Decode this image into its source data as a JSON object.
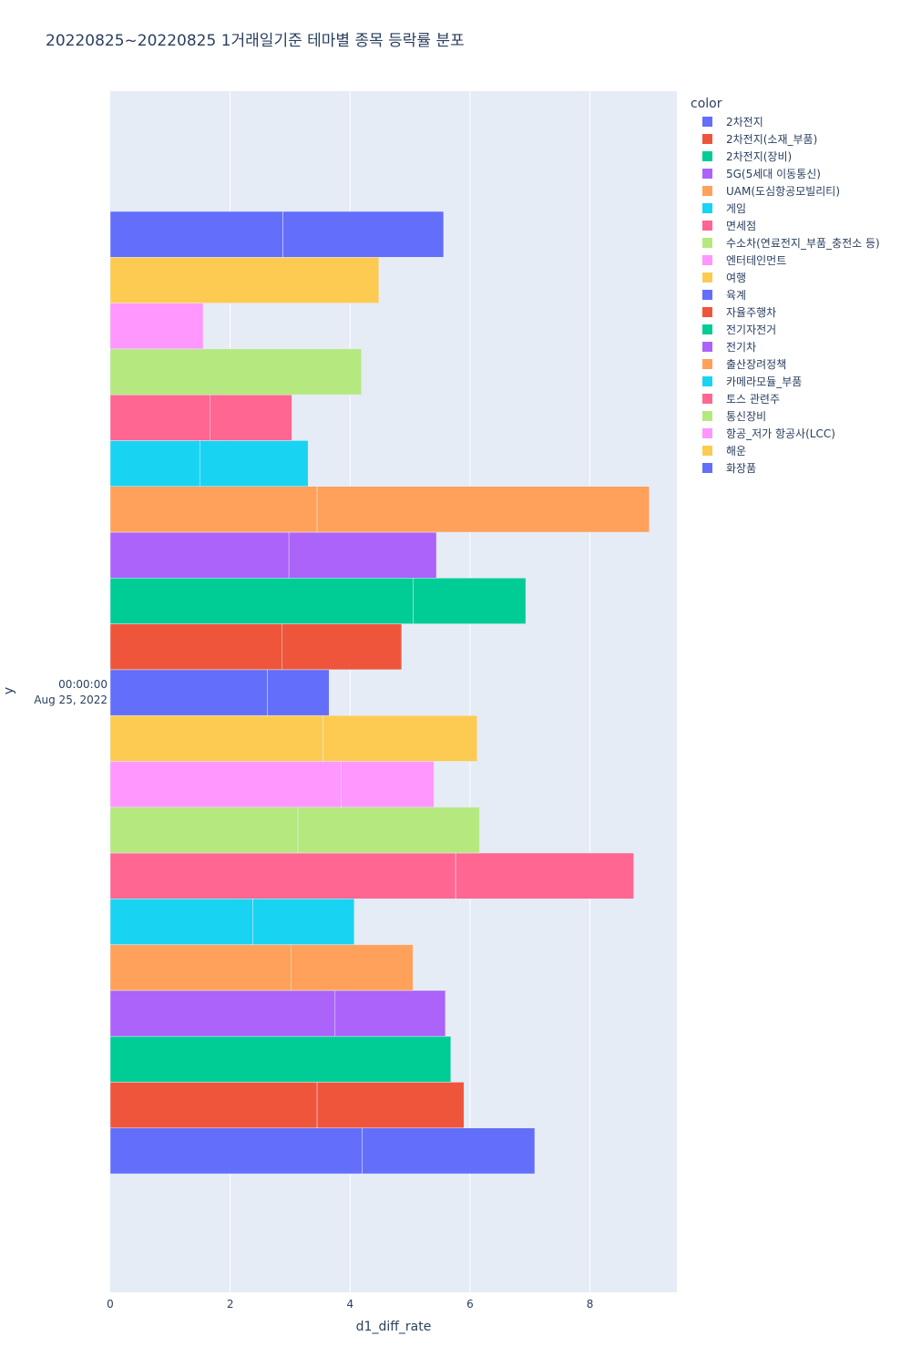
{
  "chart_data": {
    "type": "bar",
    "orientation": "horizontal",
    "barmode": "stack",
    "title": "20220825~20220825 1거래일기준 테마별 종목 등락률 분포",
    "xlabel": "d1_diff_rate",
    "ylabel": "y",
    "y_tick_label": [
      "00:00:00",
      "Aug 25, 2022"
    ],
    "xlim": [
      0,
      9.45
    ],
    "x_ticks": [
      0,
      2,
      4,
      6,
      8
    ],
    "grid": true,
    "legend_title": "color",
    "legend_position": "top-right",
    "series": [
      {
        "name": "2차전지",
        "color": "#636efa",
        "segments": [
          4.2,
          2.88
        ]
      },
      {
        "name": "2차전지(소재_부품)",
        "color": "#EF553B",
        "segments": [
          3.45,
          2.45
        ]
      },
      {
        "name": "2차전지(장비)",
        "color": "#00cc96",
        "segments": [
          5.68
        ]
      },
      {
        "name": "5G(5세대 이동통신)",
        "color": "#ab63fa",
        "segments": [
          3.75,
          1.84
        ]
      },
      {
        "name": "UAM(도심항공모빌리티)",
        "color": "#FFA15A",
        "segments": [
          3.02,
          2.03
        ]
      },
      {
        "name": "게임",
        "color": "#19d3f3",
        "segments": [
          2.38,
          1.69
        ]
      },
      {
        "name": "면세점",
        "color": "#FF6692",
        "segments": [
          5.76,
          2.97
        ]
      },
      {
        "name": "수소차(연료전지_부품_충전소 등)",
        "color": "#B6E880",
        "segments": [
          3.13,
          3.03
        ]
      },
      {
        "name": "엔터테인먼트",
        "color": "#FF97FF",
        "segments": [
          3.85,
          1.55
        ]
      },
      {
        "name": "여행",
        "color": "#FECB52",
        "segments": [
          3.55,
          2.57
        ]
      },
      {
        "name": "육계",
        "color": "#636efa",
        "segments": [
          2.62,
          1.03
        ]
      },
      {
        "name": "자율주행차",
        "color": "#EF553B",
        "segments": [
          2.86,
          2.0
        ]
      },
      {
        "name": "전기자전거",
        "color": "#00cc96",
        "segments": [
          5.05,
          1.88
        ]
      },
      {
        "name": "전기차",
        "color": "#ab63fa",
        "segments": [
          2.98,
          2.46
        ]
      },
      {
        "name": "출산장려정책",
        "color": "#FFA15A",
        "segments": [
          3.45,
          5.54
        ]
      },
      {
        "name": "카메라모듈_부품",
        "color": "#19d3f3",
        "segments": [
          1.5,
          1.8
        ]
      },
      {
        "name": "토스 관련주",
        "color": "#FF6692",
        "segments": [
          1.66,
          1.37
        ]
      },
      {
        "name": "통신장비",
        "color": "#B6E880",
        "segments": [
          4.19
        ]
      },
      {
        "name": "항공_저가 항공사(LCC)",
        "color": "#FF97FF",
        "segments": [
          1.55
        ]
      },
      {
        "name": "해운",
        "color": "#FECB52",
        "segments": [
          4.48
        ]
      },
      {
        "name": "화장품",
        "color": "#636efa",
        "segments": [
          2.88,
          2.68
        ]
      }
    ]
  }
}
